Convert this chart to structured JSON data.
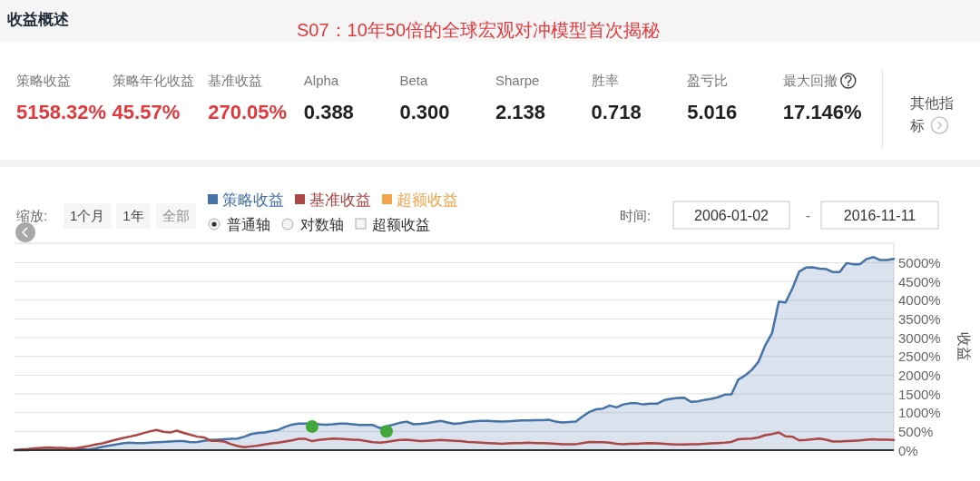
{
  "chart_data": [
    {
      "type": "other",
      "title": "收益概述",
      "subtitle": "S07：10年50倍的全球宏观对冲模型首次揭秘",
      "annotations": [
        "策略收益",
        "5158.32%",
        "策略年化收益",
        "45.57%",
        "基准收益",
        "270.05%",
        "Alpha",
        "0.388",
        "Beta",
        "0.300",
        "Sharpe",
        "2.138",
        "胜率",
        "0.718",
        "盈亏比",
        "5.016",
        "最大回撤",
        "17.146%",
        "其他指标"
      ]
    },
    {
      "type": "line",
      "ylabel": "收益",
      "annotations": [
        "缩放:",
        "1个月",
        "1年",
        "全部",
        "普通轴",
        "对数轴",
        "超额收益",
        "时间:",
        "2006-01-02",
        "-",
        "2016-11-11"
      ],
      "categories": [
        null,
        null,
        null,
        null,
        null,
        null,
        null,
        null,
        null,
        null,
        null,
        null,
        null,
        null,
        null,
        null,
        null,
        null,
        null,
        null,
        null,
        null,
        null,
        null,
        null,
        null,
        null,
        null,
        null,
        null,
        null,
        null,
        null,
        null,
        null,
        null,
        null,
        null,
        null,
        null,
        null,
        null,
        null,
        null,
        null,
        null,
        null,
        null,
        null,
        null,
        null,
        null,
        null,
        null,
        null,
        null,
        null,
        null,
        null,
        null,
        null,
        null,
        null,
        null,
        null,
        null,
        null,
        null,
        null,
        null,
        null,
        null,
        null,
        null,
        null,
        null,
        null,
        null,
        null,
        null,
        null,
        null,
        null,
        null,
        null,
        null,
        null,
        null,
        null,
        null,
        null,
        null,
        null,
        null,
        null,
        null,
        null,
        null,
        null,
        null,
        null,
        null,
        null,
        null,
        null,
        null,
        null,
        null,
        null,
        null,
        null,
        null,
        null,
        null,
        null,
        null,
        null,
        null,
        null,
        null,
        null,
        null,
        null,
        null,
        null,
        null,
        null,
        null,
        null,
        null,
        null
      ],
      "ylim": [
        0,
        5520
      ],
      "yticks": [
        {
          "value": 0,
          "label": "0%"
        },
        {
          "value": 500,
          "label": "500%"
        },
        {
          "value": 1000,
          "label": "1000%"
        },
        {
          "value": 1500,
          "label": "1500%"
        },
        {
          "value": 2000,
          "label": "2000%"
        },
        {
          "value": 2500,
          "label": "2500%"
        },
        {
          "value": 3000,
          "label": "3000%"
        },
        {
          "value": 3500,
          "label": "3500%"
        },
        {
          "value": 4000,
          "label": "4000%"
        },
        {
          "value": 4500,
          "label": "4500%"
        },
        {
          "value": 5000,
          "label": "5000%"
        }
      ],
      "tick_labels": "y",
      "grid": "y",
      "legend": "top left",
      "series": [
        {
          "name": "策略收益",
          "type": "area",
          "color": "#4572a7",
          "values": [
            0,
            0,
            0,
            10,
            10,
            10,
            10,
            10,
            10,
            20,
            20,
            20,
            50,
            90,
            120,
            150,
            180,
            200,
            190,
            190,
            200,
            210,
            220,
            230,
            240,
            240,
            210,
            220,
            250,
            270,
            280,
            290,
            300,
            310,
            360,
            430,
            460,
            470,
            510,
            540,
            620,
            680,
            710,
            710,
            720,
            690,
            680,
            690,
            710,
            710,
            690,
            670,
            670,
            670,
            590,
            630,
            680,
            730,
            760,
            690,
            700,
            720,
            750,
            780,
            740,
            700,
            720,
            750,
            770,
            780,
            780,
            770,
            760,
            770,
            780,
            790,
            790,
            800,
            800,
            810,
            760,
            740,
            750,
            760,
            900,
            1020,
            1090,
            1110,
            1190,
            1140,
            1220,
            1250,
            1250,
            1220,
            1240,
            1240,
            1330,
            1370,
            1390,
            1400,
            1290,
            1300,
            1340,
            1370,
            1410,
            1480,
            1490,
            1880,
            1990,
            2140,
            2360,
            2800,
            3120,
            3960,
            3940,
            4310,
            4760,
            4870,
            4880,
            4840,
            4830,
            4750,
            4750,
            4990,
            4960,
            4960,
            5100,
            5150,
            5070,
            5070,
            5100
          ]
        },
        {
          "name": "基准收益",
          "type": "line",
          "color": "#aa4643",
          "values": [
            0,
            20,
            30,
            50,
            60,
            70,
            60,
            60,
            50,
            50,
            80,
            110,
            150,
            180,
            230,
            280,
            320,
            360,
            400,
            450,
            500,
            540,
            490,
            470,
            520,
            460,
            410,
            360,
            340,
            250,
            250,
            230,
            160,
            110,
            80,
            100,
            120,
            150,
            180,
            200,
            230,
            260,
            300,
            300,
            240,
            270,
            290,
            310,
            300,
            290,
            280,
            270,
            240,
            210,
            200,
            220,
            250,
            270,
            280,
            260,
            240,
            250,
            260,
            270,
            260,
            250,
            240,
            220,
            210,
            200,
            190,
            180,
            170,
            180,
            190,
            190,
            200,
            190,
            190,
            180,
            170,
            160,
            160,
            160,
            190,
            220,
            210,
            210,
            200,
            170,
            160,
            170,
            170,
            180,
            190,
            180,
            170,
            160,
            150,
            150,
            160,
            160,
            170,
            180,
            190,
            200,
            220,
            290,
            300,
            310,
            340,
            400,
            430,
            470,
            370,
            360,
            260,
            270,
            290,
            310,
            280,
            230,
            230,
            240,
            250,
            260,
            280,
            290,
            280,
            280,
            270
          ]
        },
        {
          "name": "超额收益",
          "type": "line",
          "color": "#f4a44c",
          "values": [
            null,
            null,
            null,
            null,
            null,
            null,
            null,
            null,
            null,
            null,
            null,
            null,
            null,
            null,
            null,
            null,
            null,
            null,
            null,
            null,
            null,
            null,
            null,
            null,
            null,
            null,
            null,
            null,
            null,
            null,
            null,
            null,
            null,
            null,
            null,
            null,
            null,
            null,
            null,
            null,
            null,
            null,
            null,
            null,
            null,
            null,
            null,
            null,
            null,
            null,
            null,
            null,
            null,
            null,
            null,
            null,
            null,
            null,
            null,
            null,
            null,
            null,
            null,
            null,
            null,
            null,
            null,
            null,
            null,
            null,
            null,
            null,
            null,
            null,
            null,
            null,
            null,
            null,
            null,
            null,
            null,
            null,
            null,
            null,
            null,
            null,
            null,
            null,
            null,
            null,
            null,
            null,
            null,
            null,
            null,
            null,
            null,
            null,
            null,
            null,
            null,
            null,
            null,
            null,
            null,
            null,
            null,
            null,
            null,
            null,
            null,
            null,
            null,
            null,
            null,
            null,
            null,
            null,
            null,
            null,
            null,
            null,
            null,
            null,
            null,
            null,
            null,
            null,
            null,
            null,
            null
          ]
        },
        {
          "type": "scatter",
          "color": "#43a83a",
          "marker": "circle",
          "values": [
            null,
            null,
            null,
            null,
            null,
            null,
            null,
            null,
            null,
            null,
            null,
            null,
            null,
            null,
            null,
            null,
            null,
            null,
            null,
            null,
            null,
            null,
            null,
            null,
            null,
            null,
            null,
            null,
            null,
            null,
            null,
            null,
            null,
            null,
            null,
            null,
            null,
            null,
            null,
            null,
            null,
            null,
            null,
            null,
            630,
            null,
            null,
            null,
            null,
            null,
            null,
            null,
            null,
            null,
            null,
            500,
            null,
            null,
            null,
            null,
            null,
            null,
            null,
            null,
            null,
            null,
            null,
            null,
            null,
            null,
            null,
            null,
            null,
            null,
            null,
            null,
            null,
            null,
            null,
            null,
            null,
            null,
            null,
            null,
            null,
            null,
            null,
            null,
            null,
            null,
            null,
            null,
            null,
            null,
            null,
            null,
            null,
            null,
            null,
            null,
            null,
            null,
            null,
            null,
            null,
            null,
            null,
            null,
            null,
            null,
            null,
            null,
            null,
            null,
            null,
            null,
            null,
            null,
            null,
            null,
            null,
            null,
            null,
            null,
            null,
            null,
            null,
            null,
            null,
            null,
            null
          ]
        }
      ]
    }
  ]
}
